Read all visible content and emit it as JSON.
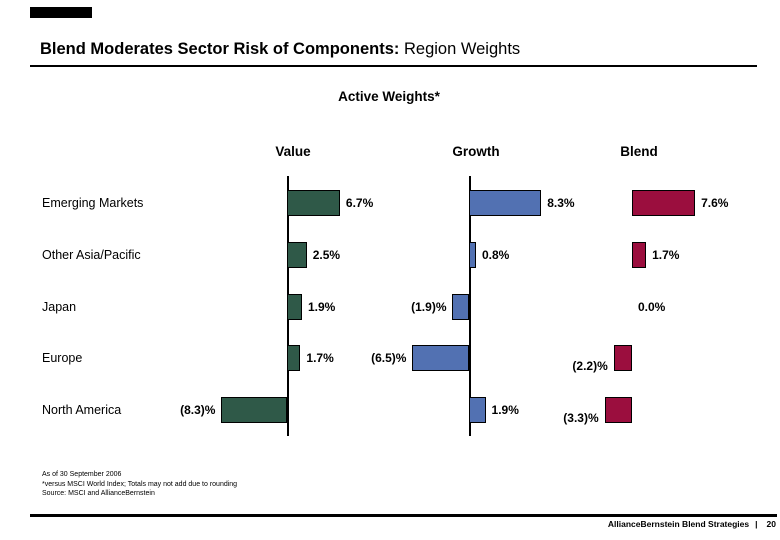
{
  "slide": {
    "title_bold": "Blend Moderates Sector Risk of Components:",
    "title_regular": " Region Weights",
    "subtitle": "Active Weights*"
  },
  "chart_data": {
    "type": "bar",
    "orientation": "horizontal",
    "title": "Active Weights*",
    "categories": [
      "Emerging Markets",
      "Other Asia/Pacific",
      "Japan",
      "Europe",
      "North America"
    ],
    "series": [
      {
        "name": "Value",
        "color": "#2F5948",
        "values": [
          6.7,
          2.5,
          1.9,
          1.7,
          -8.3
        ],
        "labels": [
          "6.7%",
          "2.5%",
          "1.9%",
          "1.7%",
          "(8.3)%"
        ]
      },
      {
        "name": "Growth",
        "color": "#5271B2",
        "values": [
          8.3,
          0.8,
          -1.9,
          -6.5,
          1.9
        ],
        "labels": [
          "8.3%",
          "0.8%",
          "(1.9)%",
          "(6.5)%",
          "1.9%"
        ]
      },
      {
        "name": "Blend",
        "color": "#9B0E3E",
        "values": [
          7.6,
          1.7,
          0.0,
          -2.2,
          -3.3
        ],
        "labels": [
          "7.6%",
          "1.7%",
          "0.0%",
          "(2.2)%",
          "(3.3)%"
        ]
      }
    ],
    "value_unit": "percent",
    "negative_format": "parentheses",
    "layout_hints": "three grouped columns each with its own zero baseline; vertical zero axis drawn for Value and Growth only; no gridlines; data labels beside bar ends"
  },
  "footnotes": [
    "As of 30 September 2006",
    "*versus MSCI World Index; Totals may not add due to rounding",
    "Source: MSCI and AllianceBernstein"
  ],
  "footer": {
    "brand": "AllianceBernstein Blend Strategies",
    "separator": "|",
    "page": "20"
  }
}
